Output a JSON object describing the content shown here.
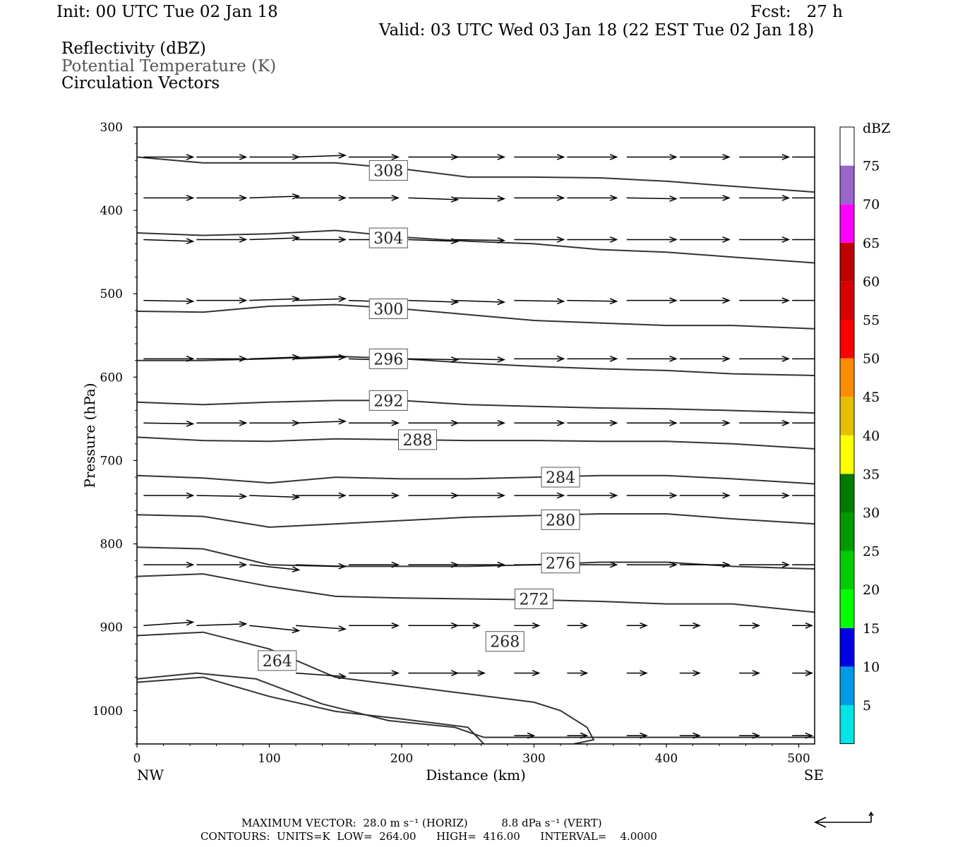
{
  "header": {
    "init": "Init: 00 UTC Tue 02 Jan 18",
    "fcst": "Fcst:   27 h",
    "valid": "Valid: 03 UTC Wed 03 Jan 18 (22 EST Tue 02 Jan 18)",
    "field1": "Reflectivity (dBZ)",
    "field2": "Potential Temperature (K)",
    "field3": "Circulation Vectors"
  },
  "footer": {
    "max_vector": "MAXIMUM VECTOR:  28.0 m s⁻¹ (HORIZ)          8.8 dPa s⁻¹ (VERT)",
    "contours": "CONTOURS:  UNITS=K  LOW=  264.00      HIGH=  416.00      INTERVAL=    4.0000"
  },
  "colors": {
    "contour": "#333333",
    "vector": "#000000",
    "axis": "#000000"
  },
  "chart_data": {
    "type": "line",
    "xlabel": "Distance (km)",
    "ylabel": "Pressure (hPa)",
    "xlim": [
      0,
      512
    ],
    "ylim": [
      1040,
      300
    ],
    "x_ticks": [
      0,
      100,
      200,
      300,
      400,
      500
    ],
    "y_ticks": [
      300,
      400,
      500,
      600,
      700,
      800,
      900,
      1000
    ],
    "x_end_labels": [
      "NW",
      "SE"
    ],
    "pressure_scale": "linear, inverted",
    "colorbar": {
      "title": "dBZ",
      "levels": [
        5,
        10,
        15,
        20,
        25,
        30,
        35,
        40,
        45,
        50,
        55,
        60,
        65,
        70,
        75
      ],
      "colors": [
        "#ffffff",
        "#00e5e5",
        "#0099e6",
        "#0000e6",
        "#00ff00",
        "#00cc00",
        "#009900",
        "#007b00",
        "#ffff00",
        "#e6bf00",
        "#ff8c00",
        "#ff0000",
        "#d60000",
        "#c00000",
        "#ff00ff",
        "#9966cc",
        "#ffffff"
      ]
    },
    "contour_interval": 4,
    "series": [
      {
        "name": "308",
        "label_at": [
          190,
          352
        ],
        "x": [
          0,
          50,
          100,
          150,
          200,
          250,
          300,
          350,
          400,
          450,
          512
        ],
        "y": [
          336,
          343,
          343,
          343,
          350,
          360,
          360,
          361,
          365,
          371,
          378
        ]
      },
      {
        "name": "304",
        "label_at": [
          190,
          433
        ],
        "x": [
          0,
          50,
          100,
          150,
          200,
          250,
          300,
          350,
          400,
          450,
          512
        ],
        "y": [
          427,
          430,
          428,
          424,
          432,
          437,
          440,
          447,
          450,
          456,
          463
        ]
      },
      {
        "name": "300",
        "label_at": [
          190,
          518
        ],
        "x": [
          0,
          50,
          100,
          150,
          200,
          250,
          300,
          350,
          400,
          450,
          512
        ],
        "y": [
          521,
          522,
          515,
          513,
          518,
          525,
          532,
          535,
          538,
          538,
          542
        ]
      },
      {
        "name": "296",
        "label_at": [
          190,
          578
        ],
        "x": [
          0,
          50,
          100,
          150,
          200,
          250,
          300,
          350,
          400,
          450,
          512
        ],
        "y": [
          580,
          580,
          578,
          575,
          578,
          583,
          587,
          590,
          592,
          596,
          598
        ]
      },
      {
        "name": "292",
        "label_at": [
          190,
          628
        ],
        "x": [
          0,
          50,
          100,
          150,
          200,
          250,
          300,
          350,
          400,
          450,
          512
        ],
        "y": [
          630,
          633,
          630,
          628,
          628,
          633,
          635,
          637,
          638,
          640,
          643
        ]
      },
      {
        "name": "288",
        "label_at": [
          212,
          675
        ],
        "x": [
          0,
          50,
          100,
          150,
          200,
          250,
          300,
          350,
          400,
          450,
          512
        ],
        "y": [
          672,
          676,
          677,
          674,
          675,
          676,
          676,
          677,
          677,
          680,
          686
        ]
      },
      {
        "name": "284",
        "label_at": [
          320,
          720
        ],
        "x": [
          0,
          50,
          100,
          150,
          200,
          250,
          300,
          350,
          400,
          450,
          512
        ],
        "y": [
          718,
          721,
          727,
          720,
          722,
          722,
          720,
          718,
          718,
          722,
          728
        ]
      },
      {
        "name": "280",
        "label_at": [
          320,
          771
        ],
        "x": [
          0,
          50,
          100,
          150,
          200,
          250,
          300,
          350,
          400,
          450,
          512
        ],
        "y": [
          765,
          767,
          780,
          776,
          772,
          768,
          766,
          764,
          764,
          770,
          776
        ]
      },
      {
        "name": "276",
        "label_at": [
          320,
          823
        ],
        "x": [
          0,
          50,
          100,
          150,
          200,
          250,
          300,
          350,
          400,
          450,
          512
        ],
        "y": [
          804,
          806,
          825,
          827,
          827,
          827,
          825,
          822,
          822,
          827,
          830
        ]
      },
      {
        "name": "272",
        "label_at": [
          300,
          866
        ],
        "x": [
          0,
          50,
          100,
          150,
          200,
          250,
          300,
          350,
          400,
          450,
          512
        ],
        "y": [
          839,
          836,
          851,
          863,
          865,
          866,
          867,
          869,
          872,
          872,
          882
        ]
      },
      {
        "name": "268",
        "label_at": [
          278,
          917
        ],
        "x": [
          0,
          50,
          100,
          150,
          200,
          250,
          300,
          320,
          340,
          345,
          330
        ],
        "y": [
          910,
          906,
          926,
          960,
          970,
          980,
          990,
          1000,
          1020,
          1035,
          1040
        ]
      },
      {
        "name": "264",
        "label_at": [
          106,
          940
        ],
        "x": [
          0,
          50,
          100,
          150,
          200,
          250,
          262
        ],
        "y": [
          966,
          960,
          983,
          1001,
          1010,
          1020,
          1040
        ]
      },
      {
        "name": "",
        "x": [
          0,
          45,
          90,
          140,
          190,
          240,
          262
        ],
        "y": [
          962,
          955,
          962,
          992,
          1012,
          1020,
          1032
        ]
      },
      {
        "name": "",
        "x": [
          262,
          300,
          400,
          512
        ],
        "y": [
          1032,
          1032,
          1032,
          1032
        ]
      }
    ],
    "vectors": {
      "x": [
        5,
        45,
        85,
        120,
        160,
        205,
        240,
        285,
        325,
        370,
        410,
        455,
        495
      ],
      "levels": [
        {
          "p": 336,
          "row": [
            [
              1,
              0
            ],
            [
              1,
              0
            ],
            [
              1,
              0
            ],
            [
              1,
              -0.1
            ],
            [
              1,
              0
            ],
            [
              1,
              0
            ],
            [
              1,
              0
            ],
            [
              1,
              0
            ],
            [
              1,
              0
            ],
            [
              1,
              0
            ],
            [
              1,
              0
            ],
            [
              1,
              0
            ],
            [
              1,
              0
            ]
          ]
        },
        {
          "p": 385,
          "row": [
            [
              1,
              0
            ],
            [
              1,
              0
            ],
            [
              1,
              -0.1
            ],
            [
              1,
              0
            ],
            [
              1,
              0
            ],
            [
              1,
              0.1
            ],
            [
              1,
              0.05
            ],
            [
              1,
              0
            ],
            [
              1,
              0
            ],
            [
              1,
              0.05
            ],
            [
              1,
              0
            ],
            [
              1,
              0
            ],
            [
              1,
              0
            ]
          ]
        },
        {
          "p": 435,
          "row": [
            [
              1,
              0.1
            ],
            [
              1,
              0
            ],
            [
              1,
              -0.1
            ],
            [
              1,
              0
            ],
            [
              1,
              0
            ],
            [
              1,
              0.1
            ],
            [
              1,
              0.05
            ],
            [
              1,
              0
            ],
            [
              1,
              0
            ],
            [
              1,
              0
            ],
            [
              1,
              0
            ],
            [
              1,
              0
            ],
            [
              1,
              0
            ]
          ]
        },
        {
          "p": 508,
          "row": [
            [
              1,
              0.05
            ],
            [
              1,
              0
            ],
            [
              1,
              -0.1
            ],
            [
              1,
              -0.1
            ],
            [
              1,
              0.1
            ],
            [
              1,
              0.1
            ],
            [
              1,
              0.1
            ],
            [
              1,
              0.05
            ],
            [
              1,
              0.05
            ],
            [
              1,
              0
            ],
            [
              1,
              0
            ],
            [
              1,
              0
            ],
            [
              1,
              0
            ]
          ]
        },
        {
          "p": 578,
          "row": [
            [
              1,
              0
            ],
            [
              1,
              0
            ],
            [
              1,
              -0.1
            ],
            [
              1,
              -0.1
            ],
            [
              1,
              0.1
            ],
            [
              1,
              0.05
            ],
            [
              1,
              0.05
            ],
            [
              1,
              0
            ],
            [
              1,
              0
            ],
            [
              1,
              0
            ],
            [
              1,
              0
            ],
            [
              1,
              0
            ],
            [
              1,
              0
            ]
          ]
        },
        {
          "p": 655,
          "row": [
            [
              1,
              0.05
            ],
            [
              1,
              0
            ],
            [
              1,
              0
            ],
            [
              1,
              -0.1
            ],
            [
              1,
              0
            ],
            [
              1,
              0
            ],
            [
              1,
              0
            ],
            [
              1,
              0
            ],
            [
              1,
              0
            ],
            [
              1,
              0
            ],
            [
              1,
              0
            ],
            [
              1,
              0
            ],
            [
              1,
              0
            ]
          ]
        },
        {
          "p": 742,
          "row": [
            [
              1,
              0
            ],
            [
              1,
              0.05
            ],
            [
              1,
              0.1
            ],
            [
              1,
              0
            ],
            [
              1,
              0
            ],
            [
              1,
              0
            ],
            [
              1,
              0
            ],
            [
              1,
              0
            ],
            [
              1,
              0
            ],
            [
              1,
              0
            ],
            [
              1,
              0
            ],
            [
              1,
              0
            ],
            [
              1,
              0
            ]
          ]
        },
        {
          "p": 825,
          "row": [
            [
              1,
              0
            ],
            [
              1,
              0
            ],
            [
              1,
              0.3
            ],
            [
              1,
              0.1
            ],
            [
              1,
              0
            ],
            [
              1,
              0
            ],
            [
              1,
              0
            ],
            [
              1,
              0
            ],
            [
              1,
              0
            ],
            [
              1,
              0
            ],
            [
              1,
              0
            ],
            [
              1,
              0
            ],
            [
              1,
              0
            ]
          ]
        },
        {
          "p": 898,
          "row": [
            [
              1,
              -0.2
            ],
            [
              1,
              -0.1
            ],
            [
              1,
              0.3
            ],
            [
              1,
              0.2
            ],
            [
              1,
              0
            ],
            [
              1,
              0
            ],
            [
              0.5,
              0
            ],
            [
              0.5,
              0
            ],
            [
              0.4,
              0
            ],
            [
              0.4,
              0
            ],
            [
              0.4,
              0
            ],
            [
              0.4,
              0
            ],
            [
              0.4,
              0
            ]
          ]
        },
        {
          "p": 955,
          "row": [
            [
              0,
              0
            ],
            [
              0,
              0
            ],
            [
              0,
              0
            ],
            [
              1,
              0.2
            ],
            [
              1,
              0
            ],
            [
              1,
              0
            ],
            [
              0.6,
              0
            ],
            [
              0.5,
              0
            ],
            [
              0.4,
              0
            ],
            [
              0.4,
              0
            ],
            [
              0.4,
              0
            ],
            [
              0.4,
              0
            ],
            [
              0.4,
              0
            ]
          ]
        },
        {
          "p": 1030,
          "row": [
            [
              0,
              0
            ],
            [
              0,
              0
            ],
            [
              0,
              0
            ],
            [
              0,
              0
            ],
            [
              0,
              0
            ],
            [
              0,
              0
            ],
            [
              0,
              0
            ],
            [
              0.4,
              0
            ],
            [
              0.4,
              0
            ],
            [
              0.4,
              0
            ],
            [
              0.4,
              0
            ],
            [
              0.4,
              0
            ],
            [
              0.4,
              0
            ]
          ]
        }
      ]
    }
  }
}
